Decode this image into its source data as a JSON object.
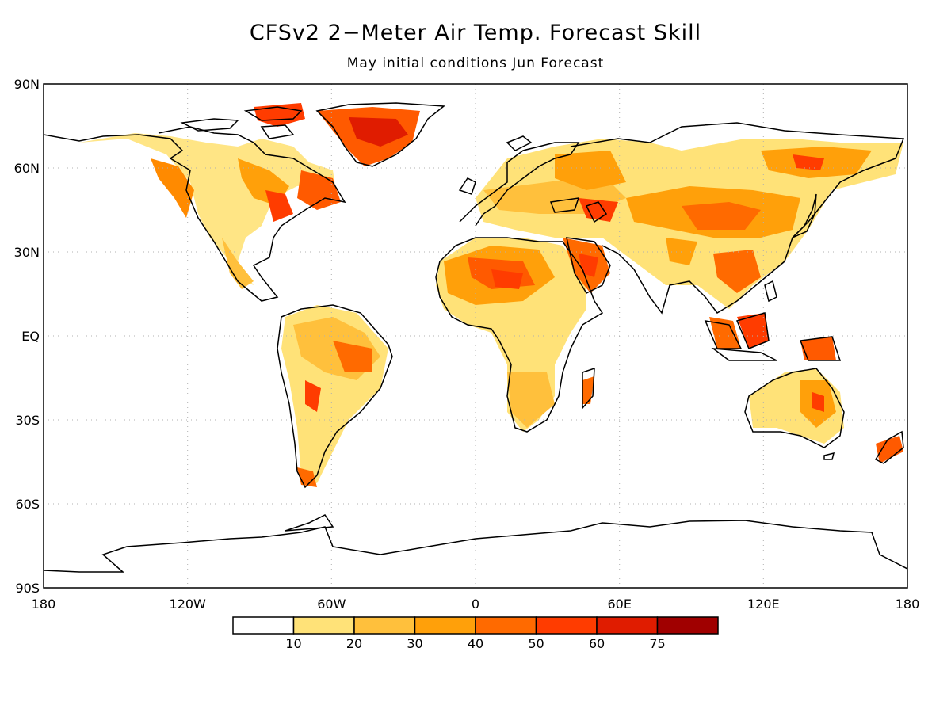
{
  "title": "CFSv2 2−Meter Air Temp. Forecast Skill",
  "subtitle": "May initial conditions  Jun Forecast",
  "map": {
    "lat_labels": [
      "90N",
      "60N",
      "30N",
      "EQ",
      "30S",
      "60S",
      "90S"
    ],
    "lon_labels": [
      "180",
      "120W",
      "60W",
      "0",
      "60E",
      "120E",
      "180"
    ],
    "grid": "dotted",
    "projection": "equirectangular"
  },
  "legend": {
    "labels": [
      "10",
      "20",
      "30",
      "40",
      "50",
      "60",
      "75"
    ],
    "colors": [
      "#ffffff",
      "#ffe278",
      "#ffc03c",
      "#ffa00a",
      "#ff6a00",
      "#ff3c00",
      "#e01c00",
      "#a00000"
    ]
  },
  "colors": {
    "land_outline": "#000000",
    "grid": "#b0b0b0"
  },
  "regions": [
    {
      "name": "greenland",
      "skill": "60-75"
    },
    {
      "name": "sahara",
      "skill": "50-60"
    },
    {
      "name": "arabia",
      "skill": "50-60"
    },
    {
      "name": "siberia",
      "skill": "30-50"
    },
    {
      "name": "amazon",
      "skill": "30-50"
    },
    {
      "name": "australia",
      "skill": "30-50"
    }
  ]
}
